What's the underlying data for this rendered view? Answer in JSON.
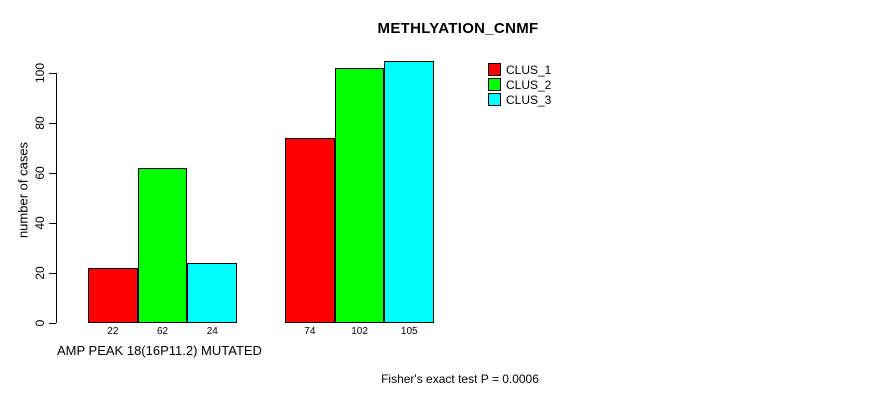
{
  "chart_data": {
    "type": "bar",
    "title": "METHLYATION_CNMF",
    "ylabel": "number of cases",
    "xlabel": "AMP PEAK 18(16P11.2) MUTATED",
    "annotation": "Fisher's exact test P = 0.0006",
    "yticks": [
      0,
      20,
      40,
      60,
      80,
      100
    ],
    "ylim": [
      0,
      105
    ],
    "grid": false,
    "legend_position": "top-right",
    "bar_border_color": "#000000",
    "series": [
      {
        "name": "CLUS_1",
        "color": "#ff0000",
        "values": [
          22,
          74
        ]
      },
      {
        "name": "CLUS_2",
        "color": "#00ff00",
        "values": [
          62,
          102
        ]
      },
      {
        "name": "CLUS_3",
        "color": "#00ffff",
        "values": [
          24,
          105
        ]
      }
    ]
  }
}
